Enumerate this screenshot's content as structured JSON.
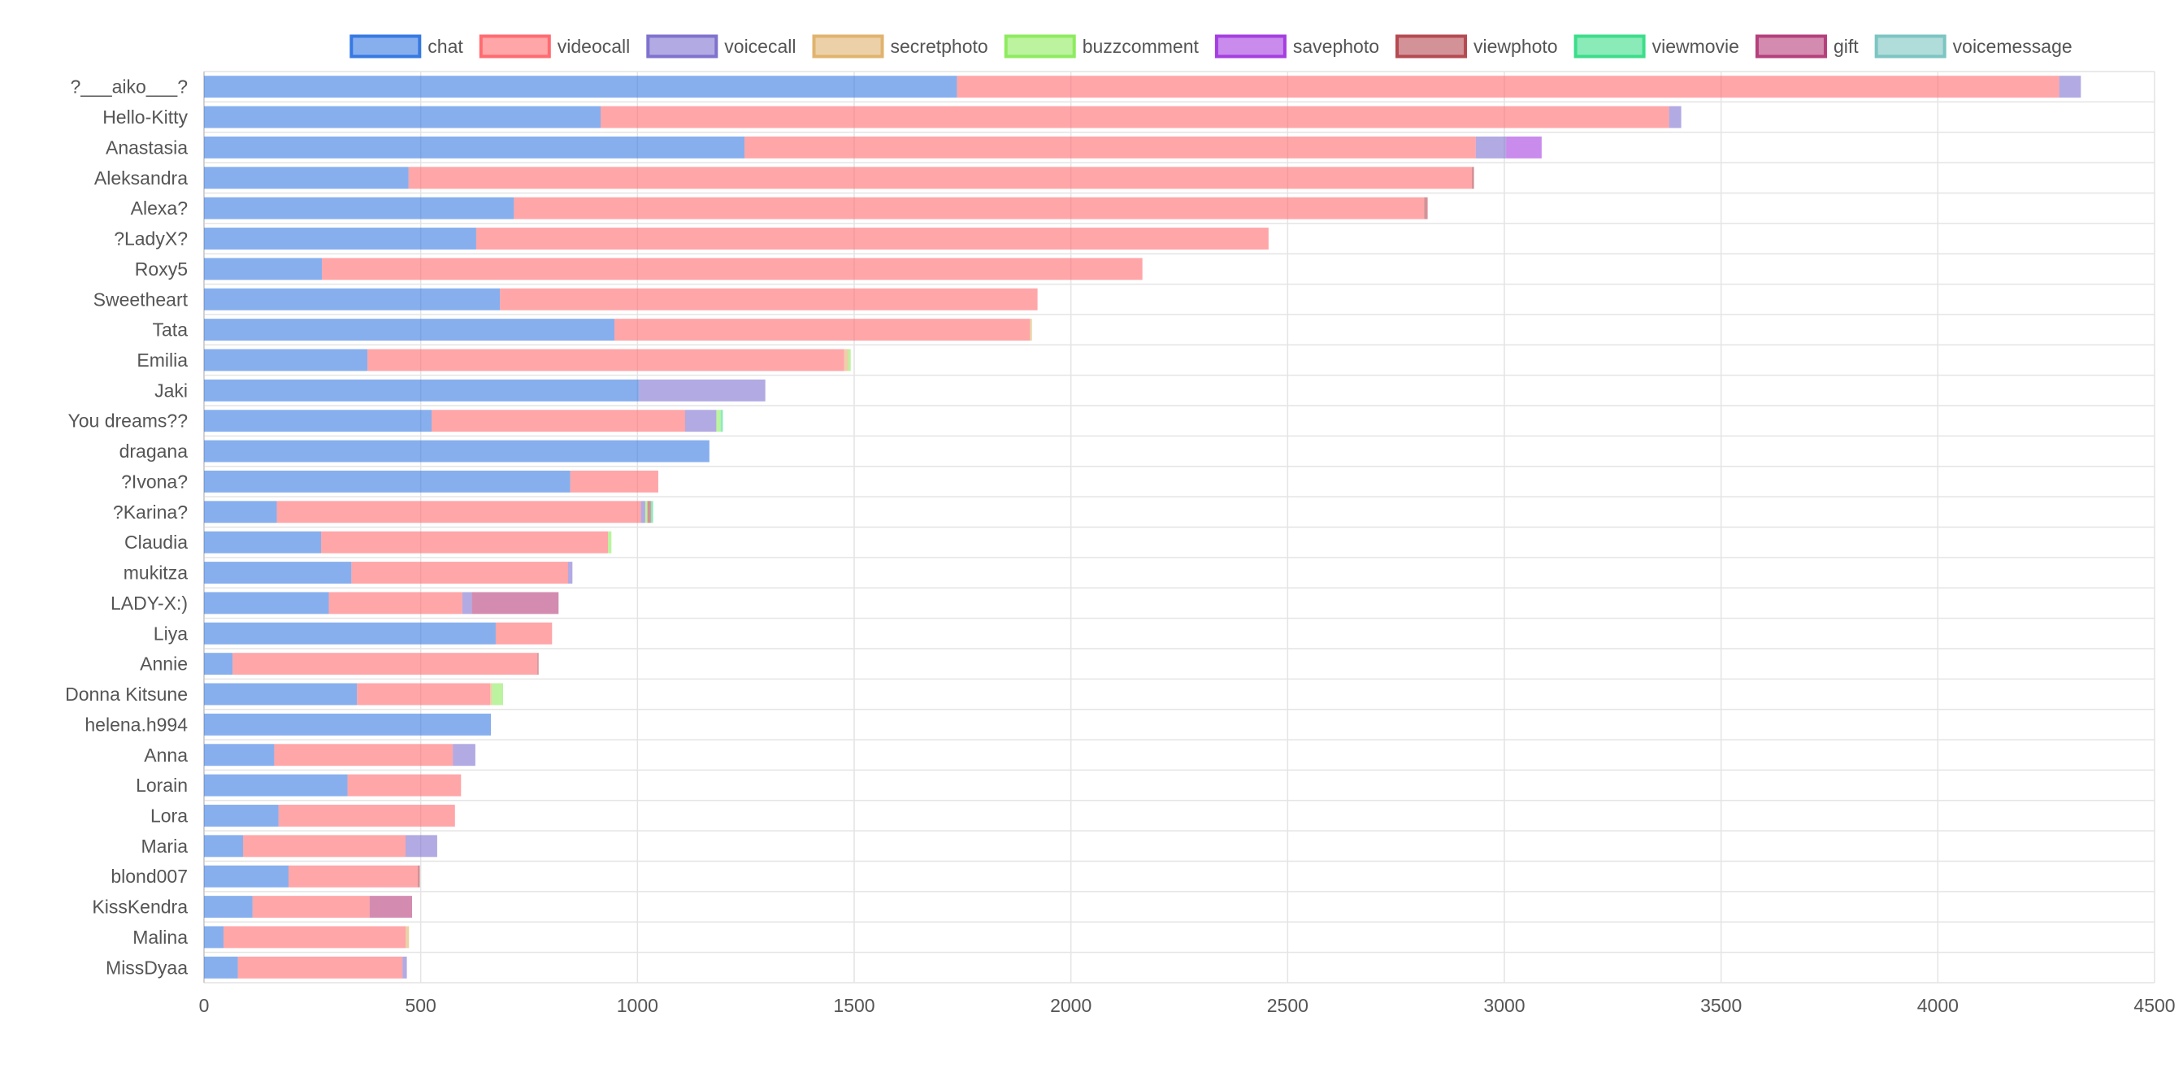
{
  "chart_data": {
    "type": "bar",
    "orientation": "horizontal",
    "stacked": true,
    "title": "",
    "xlabel": "",
    "ylabel": "",
    "xlim": [
      0,
      4500
    ],
    "x_ticks": [
      0,
      500,
      1000,
      1500,
      2000,
      2500,
      3000,
      3500,
      4000,
      4500
    ],
    "grid": true,
    "legend_position": "top",
    "categories": [
      "?___aiko___?",
      "Hello-Kitty",
      "Anastasia",
      "Aleksandra",
      "Alexa?",
      "?LadyX?",
      "Roxy5",
      "Sweetheart",
      "Tata",
      "Emilia",
      "Jaki",
      "You dreams??",
      "dragana",
      "?Ivona?",
      "?Karina?",
      "Claudia",
      "mukitza",
      "LADY-X:)",
      "Liya",
      "Annie",
      "Donna Kitsune",
      "helena.h994",
      "Anna",
      "Lorain",
      "Lora",
      "Maria",
      "blond007",
      "KissKendra",
      "Malina",
      "MissDyaa"
    ],
    "series": [
      {
        "name": "chat",
        "color": "#3779E2",
        "values": [
          1737,
          915,
          1247,
          472,
          715,
          628,
          272,
          683,
          947,
          377,
          1003,
          525,
          1166,
          845,
          168,
          270,
          340,
          288,
          673,
          66,
          353,
          662,
          162,
          331,
          172,
          90,
          195,
          112,
          45,
          78
        ]
      },
      {
        "name": "videocall",
        "color": "#FF6B70",
        "values": [
          2543,
          2465,
          1687,
          2453,
          2100,
          1828,
          1893,
          1240,
          958,
          1100,
          0,
          585,
          0,
          203,
          840,
          662,
          500,
          308,
          130,
          703,
          307,
          0,
          412,
          262,
          407,
          375,
          298,
          270,
          420,
          380
        ]
      },
      {
        "name": "voicecall",
        "color": "#7F72CE",
        "values": [
          50,
          28,
          70,
          0,
          0,
          0,
          0,
          0,
          0,
          0,
          292,
          72,
          0,
          0,
          10,
          0,
          10,
          22,
          0,
          0,
          0,
          0,
          52,
          0,
          0,
          73,
          0,
          0,
          0,
          10
        ]
      },
      {
        "name": "secretphoto",
        "color": "#E0B36E",
        "values": [
          0,
          0,
          0,
          0,
          0,
          0,
          0,
          0,
          5,
          10,
          0,
          0,
          0,
          0,
          0,
          0,
          0,
          0,
          0,
          0,
          5,
          0,
          0,
          0,
          0,
          0,
          0,
          0,
          8,
          0
        ]
      },
      {
        "name": "buzzcomment",
        "color": "#8EEB5F",
        "values": [
          0,
          0,
          0,
          0,
          0,
          0,
          0,
          0,
          0,
          5,
          0,
          10,
          0,
          0,
          5,
          8,
          0,
          0,
          0,
          0,
          25,
          0,
          0,
          0,
          0,
          0,
          0,
          0,
          0,
          0
        ]
      },
      {
        "name": "savephoto",
        "color": "#A53EE0",
        "values": [
          0,
          0,
          82,
          0,
          0,
          0,
          0,
          0,
          0,
          0,
          0,
          0,
          0,
          0,
          0,
          0,
          0,
          0,
          0,
          0,
          0,
          0,
          0,
          0,
          0,
          0,
          0,
          0,
          0,
          0
        ]
      },
      {
        "name": "viewphoto",
        "color": "#B54A51",
        "values": [
          0,
          0,
          0,
          5,
          8,
          0,
          0,
          0,
          0,
          0,
          0,
          0,
          0,
          0,
          8,
          0,
          0,
          0,
          0,
          3,
          0,
          0,
          0,
          0,
          0,
          0,
          5,
          0,
          0,
          0
        ]
      },
      {
        "name": "viewmovie",
        "color": "#3CDD8A",
        "values": [
          0,
          0,
          0,
          0,
          0,
          0,
          0,
          0,
          0,
          0,
          0,
          5,
          0,
          0,
          5,
          0,
          0,
          0,
          0,
          0,
          0,
          0,
          0,
          0,
          0,
          0,
          0,
          0,
          0,
          0
        ]
      },
      {
        "name": "gift",
        "color": "#B5407C",
        "values": [
          0,
          0,
          0,
          0,
          0,
          0,
          0,
          0,
          0,
          0,
          0,
          0,
          0,
          0,
          0,
          0,
          0,
          200,
          0,
          0,
          0,
          0,
          0,
          0,
          0,
          0,
          0,
          98,
          0,
          0
        ]
      },
      {
        "name": "voicemessage",
        "color": "#7CC5C2",
        "values": [
          0,
          0,
          0,
          0,
          0,
          0,
          0,
          0,
          0,
          0,
          0,
          0,
          0,
          0,
          0,
          0,
          0,
          0,
          0,
          0,
          0,
          0,
          0,
          0,
          0,
          0,
          0,
          0,
          0,
          0
        ]
      }
    ]
  }
}
